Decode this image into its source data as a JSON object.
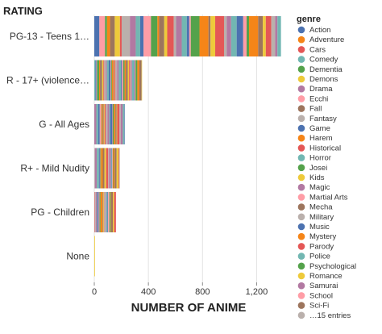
{
  "chart_data": {
    "type": "bar",
    "orientation": "horizontal",
    "stacked": true,
    "y_title": "RATING",
    "x_title": "NUMBER OF ANIME",
    "categories": [
      "PG-13 - Teens 1…",
      "R - 17+ (violence…",
      "G - All Ages",
      "R+ - Mild Nudity",
      "PG - Children",
      "None"
    ],
    "totals": [
      1380,
      350,
      225,
      185,
      160,
      5
    ],
    "xlim": [
      0,
      1400
    ],
    "xticks": [
      "0",
      "400",
      "800",
      "1,200"
    ],
    "grid": true,
    "legend_title": "genre",
    "legend_position": "right",
    "legend": [
      {
        "label": "Action",
        "color": "#4c72b0"
      },
      {
        "label": "Adventure",
        "color": "#f58518"
      },
      {
        "label": "Cars",
        "color": "#e45756"
      },
      {
        "label": "Comedy",
        "color": "#72b7b2"
      },
      {
        "label": "Dementia",
        "color": "#54a24b"
      },
      {
        "label": "Demons",
        "color": "#eeca3b"
      },
      {
        "label": "Drama",
        "color": "#b279a2"
      },
      {
        "label": "Ecchi",
        "color": "#ff9da6"
      },
      {
        "label": "Fall",
        "color": "#9d755d"
      },
      {
        "label": "Fantasy",
        "color": "#bab0ac"
      },
      {
        "label": "Game",
        "color": "#4c72b0"
      },
      {
        "label": "Harem",
        "color": "#f58518"
      },
      {
        "label": "Historical",
        "color": "#e45756"
      },
      {
        "label": "Horror",
        "color": "#72b7b2"
      },
      {
        "label": "Josei",
        "color": "#54a24b"
      },
      {
        "label": "Kids",
        "color": "#eeca3b"
      },
      {
        "label": "Magic",
        "color": "#b279a2"
      },
      {
        "label": "Martial Arts",
        "color": "#ff9da6"
      },
      {
        "label": "Mecha",
        "color": "#9d755d"
      },
      {
        "label": "Military",
        "color": "#bab0ac"
      },
      {
        "label": "Music",
        "color": "#4c72b0"
      },
      {
        "label": "Mystery",
        "color": "#f58518"
      },
      {
        "label": "Parody",
        "color": "#e45756"
      },
      {
        "label": "Police",
        "color": "#72b7b2"
      },
      {
        "label": "Psychological",
        "color": "#54a24b"
      },
      {
        "label": "Romance",
        "color": "#eeca3b"
      },
      {
        "label": "Samurai",
        "color": "#b279a2"
      },
      {
        "label": "School",
        "color": "#ff9da6"
      },
      {
        "label": "Sci-Fi",
        "color": "#9d755d"
      },
      {
        "label": "…15 entries",
        "color": "#bab0ac"
      }
    ]
  }
}
